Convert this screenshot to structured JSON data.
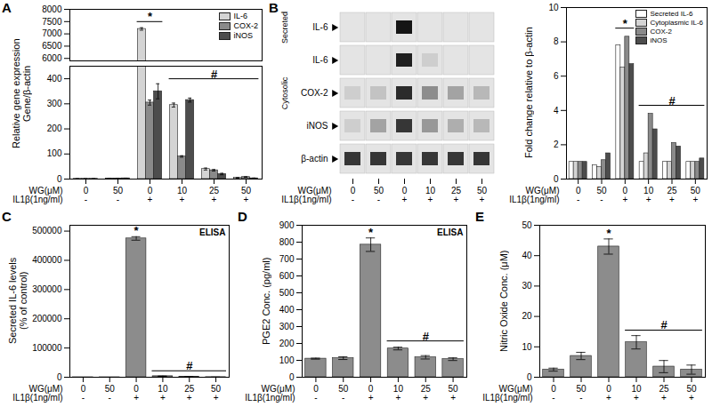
{
  "chart_data": [
    {
      "type": "bar",
      "title": "A",
      "ylabel": "Relative gene expression\nGene/β-actin",
      "categories": [
        [
          "0",
          "-"
        ],
        [
          "50",
          "-"
        ],
        [
          "0",
          "+"
        ],
        [
          "10",
          "+"
        ],
        [
          "25",
          "+"
        ],
        [
          "50",
          "+"
        ]
      ],
      "category_rows": [
        "WG(μM)",
        "IL1β(1ng/ml)"
      ],
      "series": [
        {
          "name": "IL-6",
          "color": "#d4d4d4",
          "values": [
            1,
            1.5,
            7200,
            295,
            40,
            5
          ],
          "errors": [
            0.2,
            0.3,
            50,
            8,
            4,
            1
          ]
        },
        {
          "name": "COX-2",
          "color": "#8a8a8a",
          "values": [
            1,
            2,
            305,
            90,
            35,
            8
          ],
          "errors": [
            0.2,
            0.4,
            10,
            3,
            3,
            1
          ]
        },
        {
          "name": "iNOS",
          "color": "#4d4d4d",
          "values": [
            1,
            3,
            350,
            315,
            20,
            3
          ],
          "errors": [
            0.2,
            0.5,
            30,
            8,
            3,
            1
          ]
        }
      ],
      "ylim": [
        0,
        8000
      ],
      "y_break": [
        450,
        5900
      ],
      "yticks": [
        0,
        100,
        200,
        300,
        400,
        6000,
        6500,
        7000,
        7500,
        8000
      ],
      "legend": "top-right",
      "annotations": [
        {
          "text": "*",
          "x": [
            2,
            2
          ],
          "y": 7500
        },
        {
          "text": "#",
          "x": [
            3,
            5
          ],
          "y": 400
        }
      ]
    },
    {
      "type": "blot",
      "title": "B",
      "categories": [
        [
          "0",
          "-"
        ],
        [
          "50",
          "-"
        ],
        [
          "0",
          "+"
        ],
        [
          "10",
          "+"
        ],
        [
          "25",
          "+"
        ],
        [
          "50",
          "+"
        ]
      ],
      "category_rows": [
        "WG(μM)",
        "IL1β(1ng/ml)"
      ],
      "rows": [
        {
          "label": "IL-6",
          "intensity": [
            0,
            0,
            0.95,
            0,
            0,
            0
          ]
        },
        {
          "label": "IL-6",
          "intensity": [
            0,
            0,
            0.9,
            0.1,
            0,
            0
          ]
        },
        {
          "label": "COX-2",
          "intensity": [
            0.1,
            0.15,
            0.85,
            0.4,
            0.3,
            0.2
          ]
        },
        {
          "label": "iNOS",
          "intensity": [
            0.1,
            0.3,
            0.8,
            0.35,
            0.25,
            0.2
          ]
        },
        {
          "label": "β-actin",
          "intensity": [
            0.8,
            0.8,
            0.8,
            0.8,
            0.8,
            0.8
          ]
        }
      ],
      "groups": [
        {
          "label": "Secreted",
          "rows": [
            0,
            0
          ]
        },
        {
          "label": "Cytosolic",
          "rows": [
            1,
            3
          ]
        }
      ],
      "intensity_lim": [
        0,
        1
      ]
    },
    {
      "type": "bar",
      "ylabel": "Fold change relative to β-actin",
      "categories": [
        [
          "0",
          "-"
        ],
        [
          "50",
          "-"
        ],
        [
          "0",
          "+"
        ],
        [
          "10",
          "+"
        ],
        [
          "25",
          "+"
        ],
        [
          "50",
          "+"
        ]
      ],
      "category_rows": [
        "WG(μM)",
        "IL1β(1ng/ml)"
      ],
      "series": [
        {
          "name": "Secreted IL-6",
          "color": "#ffffff",
          "values": [
            1,
            0.8,
            7.8,
            1.0,
            1.0,
            1.0
          ]
        },
        {
          "name": "Cytoplasmic IL-6",
          "color": "#d4d4d4",
          "values": [
            1,
            0.7,
            6.5,
            1.5,
            1.0,
            1.0
          ]
        },
        {
          "name": "COX-2",
          "color": "#8a8a8a",
          "values": [
            1,
            1.1,
            8.3,
            3.8,
            2.1,
            1.0
          ]
        },
        {
          "name": "iNOS",
          "color": "#4d4d4d",
          "values": [
            1,
            1.5,
            6.7,
            2.9,
            1.9,
            1.2
          ]
        }
      ],
      "ylim": [
        0,
        10
      ],
      "yticks": [
        0,
        2,
        4,
        6,
        8,
        10
      ],
      "legend": "top-right",
      "annotations": [
        {
          "text": "*",
          "x": [
            2,
            2
          ],
          "y": 8.8
        },
        {
          "text": "#",
          "x": [
            3,
            5
          ],
          "y": 4.3
        }
      ]
    },
    {
      "type": "bar",
      "title": "C",
      "subtitle": "ELISA",
      "ylabel": "Secreted IL-6 levels\n(% of control)",
      "categories": [
        [
          "0",
          "-"
        ],
        [
          "50",
          "-"
        ],
        [
          "0",
          "+"
        ],
        [
          "10",
          "+"
        ],
        [
          "25",
          "+"
        ],
        [
          "50",
          "+"
        ]
      ],
      "category_rows": [
        "WG(μM)",
        "IL1β(1ng/ml)"
      ],
      "color": "#8c8c8c",
      "values": [
        100,
        95,
        475000,
        3500,
        1200,
        400
      ],
      "errors": [
        0,
        0,
        6000,
        500,
        200,
        100
      ],
      "ylim": [
        0,
        520000
      ],
      "yticks": [
        0,
        100000,
        200000,
        300000,
        400000,
        500000
      ],
      "annotations": [
        {
          "text": "*",
          "x": 2,
          "y": 484000
        },
        {
          "text": "#",
          "x": [
            3,
            5
          ],
          "y": 22000
        }
      ]
    },
    {
      "type": "bar",
      "title": "D",
      "subtitle": "ELISA",
      "ylabel": "PGE2 Conc. (pg/ml)",
      "categories": [
        [
          "0",
          "-"
        ],
        [
          "50",
          "-"
        ],
        [
          "0",
          "+"
        ],
        [
          "10",
          "+"
        ],
        [
          "25",
          "+"
        ],
        [
          "50",
          "+"
        ]
      ],
      "category_rows": [
        "WG(μM)",
        "IL1β(1ng/ml)"
      ],
      "color": "#8c8c8c",
      "values": [
        110,
        113,
        785,
        170,
        118,
        107
      ],
      "errors": [
        3,
        8,
        40,
        8,
        10,
        8
      ],
      "ylim": [
        0,
        900
      ],
      "yticks": [
        0,
        100,
        200,
        300,
        400,
        500,
        600,
        700,
        800,
        900
      ],
      "annotations": [
        {
          "text": "*",
          "x": 2,
          "y": 830
        },
        {
          "text": "#",
          "x": [
            3,
            5
          ],
          "y": 215
        }
      ]
    },
    {
      "type": "bar",
      "title": "E",
      "ylabel": "Nitric Oxide Conc. (μM)",
      "categories": [
        [
          "0",
          "-"
        ],
        [
          "50",
          "-"
        ],
        [
          "0",
          "+"
        ],
        [
          "10",
          "+"
        ],
        [
          "25",
          "+"
        ],
        [
          "50",
          "+"
        ]
      ],
      "category_rows": [
        "WG(μM)",
        "IL1β(1ng/ml)"
      ],
      "color": "#8c8c8c",
      "values": [
        2.5,
        7,
        43,
        11.5,
        3.5,
        2.5
      ],
      "errors": [
        0.5,
        1.2,
        2.5,
        2.2,
        2,
        1.5
      ],
      "ylim": [
        0,
        50
      ],
      "yticks": [
        0,
        10,
        20,
        30,
        40,
        50
      ],
      "annotations": [
        {
          "text": "*",
          "x": 2,
          "y": 45.8
        },
        {
          "text": "#",
          "x": [
            3,
            5
          ],
          "y": 15.5
        }
      ]
    }
  ]
}
